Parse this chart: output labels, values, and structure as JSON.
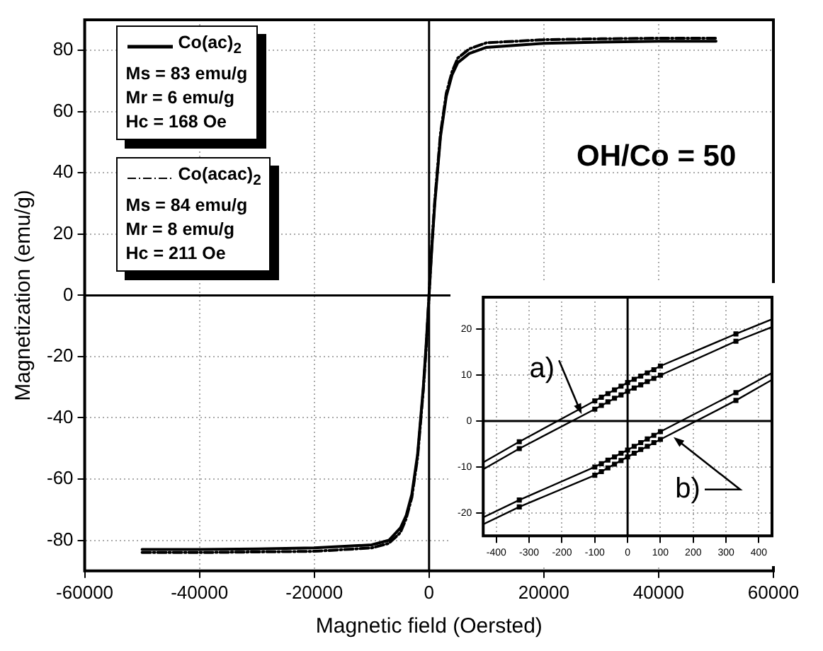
{
  "chart_data": [
    {
      "type": "line",
      "xlabel": "Magnetic field (Oersted)",
      "ylabel": "Magnetization (emu/g)",
      "xlim": [
        -60000,
        60000
      ],
      "xticks": [
        -60000,
        -40000,
        -20000,
        0,
        20000,
        40000,
        60000
      ],
      "ylim": [
        -90,
        90
      ],
      "yticks": [
        -80,
        -60,
        -40,
        -20,
        0,
        20,
        40,
        60,
        80
      ],
      "grid": true,
      "legend": "top left",
      "marker": "none",
      "line_style": "solid",
      "x": [
        -50000,
        -40000,
        -30000,
        -20000,
        -10000,
        -7000,
        -5000,
        -4000,
        -3000,
        -2000,
        -1000,
        -500,
        0,
        500,
        1000,
        2000,
        3000,
        4000,
        5000,
        7000,
        10000,
        20000,
        30000,
        40000,
        50000
      ],
      "series": [
        {
          "name": "Co(ac)$_{2}$",
          "color": "#000000",
          "values": [
            -83,
            -83,
            -82.8,
            -82.5,
            -81.5,
            -80,
            -76,
            -72,
            -65,
            -52,
            -30,
            -16,
            0,
            16,
            30,
            52,
            65,
            72,
            76,
            79,
            81,
            82.3,
            82.7,
            83,
            83
          ]
        },
        {
          "name": "Co(acac)$_{2}$",
          "color": "#000000",
          "line_style": "dashed",
          "values": [
            -84,
            -84,
            -83.8,
            -83.6,
            -82.5,
            -81,
            -77.5,
            -73,
            -66,
            -53,
            -31,
            -17,
            0,
            17,
            31,
            53,
            66,
            73,
            77.5,
            80.5,
            82.5,
            83.5,
            83.8,
            84,
            84
          ]
        }
      ],
      "annotations": [
        "Ms = 83 emu/g",
        "Mr = 6 emu/g",
        "Hc = 168 Oe",
        "Ms = 84 emu/g",
        "Mr = 8 emu/g",
        "Hc = 211 Oe",
        "OH/Co = 50"
      ]
    },
    {
      "type": "line",
      "xlim": [
        -440,
        440
      ],
      "xticks": [
        -400,
        -300,
        -200,
        -100,
        0,
        100,
        200,
        300,
        400
      ],
      "ylim": [
        -25,
        27
      ],
      "yticks": [
        -20,
        -10,
        0,
        10,
        20
      ],
      "grid": true,
      "marker": "none",
      "series": [
        {
          "color": "#000000",
          "x": [
            -440,
            -330,
            -100,
            0,
            100,
            330,
            440
          ],
          "values": [
            -9,
            -4.5,
            4.4,
            8.4,
            12,
            19,
            22.2
          ]
        },
        {
          "color": "#000000",
          "x": [
            -440,
            -330,
            -100,
            0,
            100,
            330,
            440
          ],
          "values": [
            -10.5,
            -6,
            2.6,
            6.5,
            10,
            17.4,
            20.5
          ]
        },
        {
          "color": "#000000",
          "x": [
            -440,
            -330,
            -100,
            0,
            100,
            330,
            440
          ],
          "values": [
            -21,
            -17.2,
            -10,
            -6.3,
            -2.3,
            6.2,
            10.5
          ]
        },
        {
          "color": "#000000",
          "x": [
            -440,
            -330,
            -100,
            0,
            100,
            330,
            440
          ],
          "values": [
            -22.5,
            -18.7,
            -11.8,
            -7.8,
            -4,
            4.5,
            9
          ]
        },
        {
          "type": "scatter",
          "marker": "square",
          "color": "#000000",
          "x": [
            -330,
            -100,
            -80,
            -60,
            -40,
            -20,
            0,
            20,
            40,
            60,
            80,
            100,
            330
          ],
          "values": [
            -4.5,
            4.4,
            5.2,
            6,
            6.8,
            7.6,
            8.4,
            9.1,
            9.8,
            10.5,
            11.2,
            12,
            19
          ]
        },
        {
          "type": "scatter",
          "marker": "square",
          "color": "#000000",
          "x": [
            -330,
            -100,
            -80,
            -60,
            -40,
            -20,
            0,
            20,
            40,
            60,
            80,
            100,
            330
          ],
          "values": [
            -6,
            2.6,
            3.4,
            4.2,
            5,
            5.7,
            6.5,
            7.2,
            7.9,
            8.6,
            9.3,
            10,
            17.4
          ]
        },
        {
          "type": "scatter",
          "marker": "square",
          "color": "#000000",
          "x": [
            -330,
            -100,
            -80,
            -60,
            -40,
            -20,
            0,
            20,
            40,
            60,
            80,
            100,
            330
          ],
          "values": [
            -17.2,
            -10,
            -9.3,
            -8.5,
            -7.8,
            -7,
            -6.3,
            -5.5,
            -4.7,
            -3.9,
            -3.1,
            -2.3,
            6.2
          ]
        },
        {
          "type": "scatter",
          "marker": "square",
          "color": "#000000",
          "x": [
            -330,
            -100,
            -80,
            -60,
            -40,
            -20,
            0,
            20,
            40,
            60,
            80,
            100,
            330
          ],
          "values": [
            -18.7,
            -11.8,
            -11,
            -10.2,
            -9.4,
            -8.6,
            -7.8,
            -7,
            -6.2,
            -5.5,
            -4.7,
            -4,
            4.5
          ]
        }
      ],
      "annotations": [
        {
          "text": "a)",
          "x": -140,
          "y": 1.5
        },
        {
          "text": "b)",
          "x": 140,
          "y": -3.5
        }
      ]
    }
  ]
}
